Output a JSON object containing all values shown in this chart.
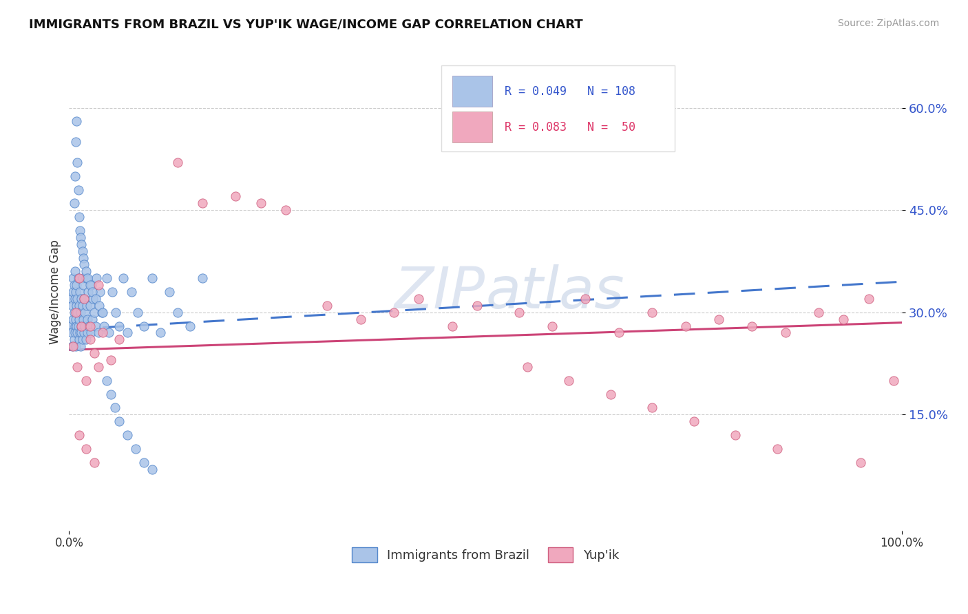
{
  "title": "IMMIGRANTS FROM BRAZIL VS YUP'IK WAGE/INCOME GAP CORRELATION CHART",
  "source": "Source: ZipAtlas.com",
  "ylabel": "Wage/Income Gap",
  "xlim": [
    0.0,
    1.0
  ],
  "ylim": [
    -0.02,
    0.68
  ],
  "yticks": [
    0.15,
    0.3,
    0.45,
    0.6
  ],
  "ytick_labels": [
    "15.0%",
    "30.0%",
    "45.0%",
    "60.0%"
  ],
  "series1_label": "Immigrants from Brazil",
  "series1_color": "#aac4e8",
  "series1_edge": "#5588cc",
  "series2_label": "Yup'ik",
  "series2_color": "#f0a8be",
  "series2_edge": "#d06080",
  "legend_R1": "R = 0.049",
  "legend_N1": "N = 108",
  "legend_R2": "R = 0.083",
  "legend_N2": "N =  50",
  "trend1_color": "#4477cc",
  "trend2_color": "#cc4477",
  "background": "#ffffff",
  "grid_color": "#cccccc",
  "brazil_x": [
    0.002,
    0.003,
    0.003,
    0.004,
    0.004,
    0.005,
    0.005,
    0.005,
    0.006,
    0.006,
    0.006,
    0.007,
    0.007,
    0.007,
    0.007,
    0.008,
    0.008,
    0.008,
    0.009,
    0.009,
    0.009,
    0.01,
    0.01,
    0.01,
    0.011,
    0.011,
    0.012,
    0.012,
    0.012,
    0.013,
    0.013,
    0.014,
    0.014,
    0.015,
    0.015,
    0.015,
    0.016,
    0.016,
    0.016,
    0.017,
    0.017,
    0.018,
    0.018,
    0.019,
    0.019,
    0.02,
    0.02,
    0.021,
    0.022,
    0.022,
    0.023,
    0.024,
    0.025,
    0.026,
    0.027,
    0.028,
    0.029,
    0.03,
    0.032,
    0.033,
    0.035,
    0.037,
    0.039,
    0.042,
    0.045,
    0.048,
    0.052,
    0.056,
    0.06,
    0.065,
    0.07,
    0.075,
    0.082,
    0.09,
    0.1,
    0.11,
    0.12,
    0.13,
    0.145,
    0.16,
    0.006,
    0.007,
    0.008,
    0.009,
    0.01,
    0.011,
    0.012,
    0.013,
    0.014,
    0.015,
    0.016,
    0.017,
    0.018,
    0.02,
    0.022,
    0.025,
    0.028,
    0.032,
    0.036,
    0.04,
    0.045,
    0.05,
    0.055,
    0.06,
    0.07,
    0.08,
    0.09,
    0.1
  ],
  "brazil_y": [
    0.28,
    0.32,
    0.27,
    0.31,
    0.25,
    0.35,
    0.29,
    0.33,
    0.26,
    0.3,
    0.34,
    0.28,
    0.32,
    0.27,
    0.36,
    0.29,
    0.33,
    0.25,
    0.31,
    0.28,
    0.34,
    0.27,
    0.32,
    0.3,
    0.28,
    0.35,
    0.26,
    0.31,
    0.29,
    0.27,
    0.33,
    0.25,
    0.3,
    0.28,
    0.32,
    0.27,
    0.35,
    0.26,
    0.31,
    0.29,
    0.34,
    0.27,
    0.32,
    0.3,
    0.28,
    0.35,
    0.26,
    0.31,
    0.29,
    0.27,
    0.33,
    0.28,
    0.31,
    0.27,
    0.34,
    0.29,
    0.32,
    0.3,
    0.28,
    0.35,
    0.27,
    0.33,
    0.3,
    0.28,
    0.35,
    0.27,
    0.33,
    0.3,
    0.28,
    0.35,
    0.27,
    0.33,
    0.3,
    0.28,
    0.35,
    0.27,
    0.33,
    0.3,
    0.28,
    0.35,
    0.46,
    0.5,
    0.55,
    0.58,
    0.52,
    0.48,
    0.44,
    0.42,
    0.41,
    0.4,
    0.39,
    0.38,
    0.37,
    0.36,
    0.35,
    0.34,
    0.33,
    0.32,
    0.31,
    0.3,
    0.2,
    0.18,
    0.16,
    0.14,
    0.12,
    0.1,
    0.08,
    0.07
  ],
  "yupik_x": [
    0.005,
    0.01,
    0.015,
    0.02,
    0.025,
    0.03,
    0.035,
    0.04,
    0.05,
    0.06,
    0.008,
    0.012,
    0.018,
    0.025,
    0.035,
    0.012,
    0.02,
    0.03,
    0.13,
    0.16,
    0.2,
    0.23,
    0.26,
    0.31,
    0.35,
    0.39,
    0.42,
    0.46,
    0.49,
    0.54,
    0.58,
    0.62,
    0.66,
    0.7,
    0.74,
    0.78,
    0.82,
    0.86,
    0.9,
    0.93,
    0.96,
    0.99,
    0.55,
    0.6,
    0.65,
    0.7,
    0.75,
    0.8,
    0.85,
    0.95
  ],
  "yupik_y": [
    0.25,
    0.22,
    0.28,
    0.2,
    0.26,
    0.24,
    0.22,
    0.27,
    0.23,
    0.26,
    0.3,
    0.35,
    0.32,
    0.28,
    0.34,
    0.12,
    0.1,
    0.08,
    0.52,
    0.46,
    0.47,
    0.46,
    0.45,
    0.31,
    0.29,
    0.3,
    0.32,
    0.28,
    0.31,
    0.3,
    0.28,
    0.32,
    0.27,
    0.3,
    0.28,
    0.29,
    0.28,
    0.27,
    0.3,
    0.29,
    0.32,
    0.2,
    0.22,
    0.2,
    0.18,
    0.16,
    0.14,
    0.12,
    0.1,
    0.08
  ]
}
